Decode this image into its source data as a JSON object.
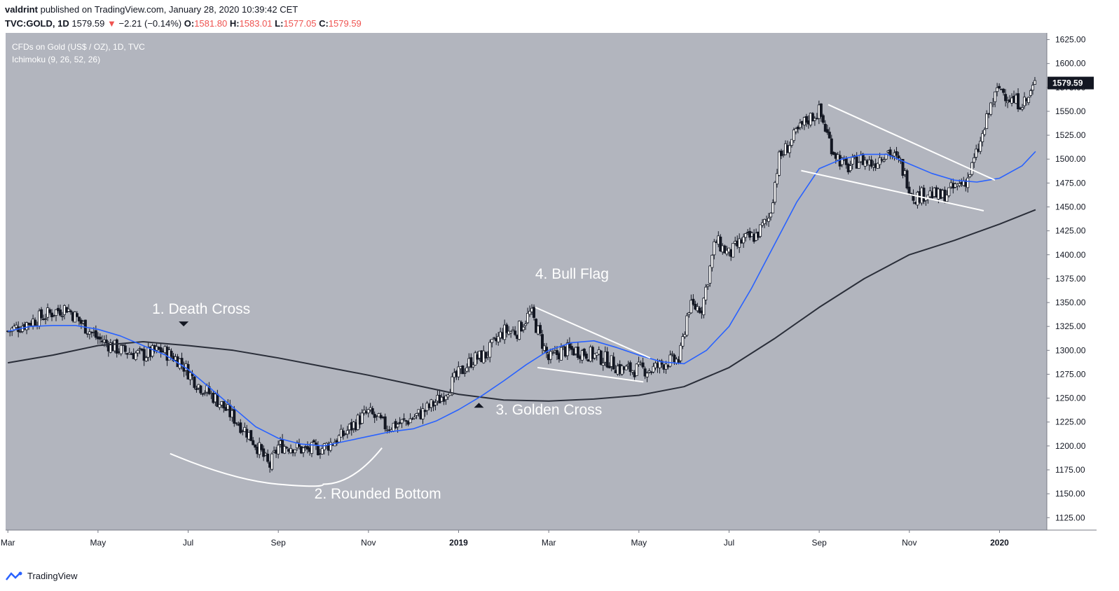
{
  "header": {
    "author": "valdrint",
    "published_text": "published on TradingView.com, January 28, 2020 10:39:42 CET",
    "symbol": "TVC:GOLD, 1D",
    "last": "1579.59",
    "arrow": "▼",
    "change": "−2.21 (−0.14%)",
    "o_label": "O:",
    "o_value": "1581.80",
    "h_label": "H:",
    "h_value": "1583.01",
    "l_label": "L:",
    "l_value": "1577.05",
    "c_label": "C:",
    "c_value": "1579.59"
  },
  "legend": {
    "title": "CFDs on Gold (US$ / OZ), 1D, TVC",
    "indicator": "Ichimoku (9, 26, 52, 26)"
  },
  "footer": {
    "brand": "TradingView"
  },
  "colors": {
    "background": "#b2b5be",
    "candle": "#131722",
    "ma_fast": "#2962ff",
    "ma_slow": "#2a2e39",
    "annotation": "#ffffff"
  },
  "chart_data": {
    "type": "line",
    "title": "CFDs on Gold (US$ / OZ), 1D, TVC",
    "current_price": 1579.59,
    "current_price_label": "1579.59",
    "ylim": [
      1112,
      1632
    ],
    "y_ticks": [
      1125,
      1150,
      1175,
      1200,
      1225,
      1250,
      1275,
      1300,
      1325,
      1350,
      1375,
      1400,
      1425,
      1450,
      1475,
      1500,
      1525,
      1550,
      1575,
      1600,
      1625
    ],
    "y_tick_labels": [
      "1125.00",
      "1150.00",
      "1175.00",
      "1200.00",
      "1225.00",
      "1250.00",
      "1275.00",
      "1300.00",
      "1325.00",
      "1350.00",
      "1375.00",
      "1400.00",
      "1425.00",
      "1450.00",
      "1475.00",
      "1500.00",
      "1525.00",
      "1550.00",
      "1575.00",
      "1600.00",
      "1625.00"
    ],
    "x_axis": {
      "unit": "months since Jan 2018",
      "xlim": [
        1.95,
        25.05
      ],
      "ticks": [
        {
          "pos": 2,
          "label": "Mar",
          "bold": false
        },
        {
          "pos": 4,
          "label": "May",
          "bold": false
        },
        {
          "pos": 6,
          "label": "Jul",
          "bold": false
        },
        {
          "pos": 8,
          "label": "Sep",
          "bold": false
        },
        {
          "pos": 10,
          "label": "Nov",
          "bold": false
        },
        {
          "pos": 12,
          "label": "2019",
          "bold": true
        },
        {
          "pos": 14,
          "label": "Mar",
          "bold": false
        },
        {
          "pos": 16,
          "label": "May",
          "bold": false
        },
        {
          "pos": 18,
          "label": "Jul",
          "bold": false
        },
        {
          "pos": 20,
          "label": "Sep",
          "bold": false
        },
        {
          "pos": 22,
          "label": "Nov",
          "bold": false
        },
        {
          "pos": 24,
          "label": "2020",
          "bold": true
        }
      ]
    },
    "series": [
      {
        "name": "Price (close)",
        "x": [
          2,
          2.5,
          3,
          3.3,
          3.6,
          4,
          4.5,
          5,
          5.4,
          5.8,
          6.2,
          6.6,
          7,
          7.3,
          7.6,
          7.8,
          8,
          8.3,
          8.6,
          9,
          9.4,
          9.8,
          10,
          10.4,
          10.8,
          11.2,
          11.6,
          12,
          12.3,
          12.6,
          13,
          13.3,
          13.6,
          13.8,
          14,
          14.3,
          14.6,
          15,
          15.3,
          15.6,
          16,
          16.3,
          16.6,
          16.9,
          17.1,
          17.4,
          17.7,
          18,
          18.3,
          18.6,
          18.9,
          19.1,
          19.4,
          19.7,
          20,
          20.3,
          20.6,
          20.9,
          21.2,
          21.5,
          21.8,
          22.1,
          22.4,
          22.7,
          23,
          23.3,
          23.6,
          23.8,
          24,
          24.3,
          24.6,
          24.8
        ],
        "values": [
          1320,
          1330,
          1340,
          1345,
          1330,
          1312,
          1300,
          1295,
          1300,
          1290,
          1265,
          1250,
          1230,
          1215,
          1195,
          1178,
          1200,
          1200,
          1195,
          1198,
          1210,
          1228,
          1235,
          1220,
          1225,
          1235,
          1250,
          1275,
          1290,
          1295,
          1320,
          1320,
          1340,
          1315,
          1290,
          1300,
          1300,
          1295,
          1290,
          1280,
          1280,
          1280,
          1288,
          1290,
          1345,
          1345,
          1415,
          1400,
          1415,
          1420,
          1440,
          1500,
          1520,
          1540,
          1550,
          1510,
          1490,
          1500,
          1495,
          1510,
          1495,
          1460,
          1465,
          1460,
          1470,
          1480,
          1520,
          1555,
          1575,
          1560,
          1560,
          1580
        ]
      },
      {
        "name": "MA fast (blue)",
        "x": [
          2,
          2.5,
          3,
          3.5,
          4,
          4.5,
          5,
          5.5,
          6,
          6.5,
          7,
          7.5,
          8,
          8.5,
          9,
          9.5,
          10,
          10.5,
          11,
          11.5,
          12,
          12.5,
          13,
          13.5,
          14,
          14.5,
          15,
          15.5,
          16,
          16.5,
          17,
          17.5,
          18,
          18.5,
          19,
          19.5,
          20,
          20.5,
          21,
          21.5,
          22,
          22.5,
          23,
          23.5,
          24,
          24.5,
          24.8
        ],
        "values": [
          1320,
          1325,
          1326,
          1326,
          1322,
          1315,
          1305,
          1295,
          1280,
          1260,
          1240,
          1220,
          1208,
          1202,
          1200,
          1205,
          1210,
          1215,
          1218,
          1226,
          1238,
          1252,
          1268,
          1285,
          1300,
          1308,
          1310,
          1303,
          1295,
          1288,
          1286,
          1300,
          1325,
          1365,
          1410,
          1455,
          1490,
          1500,
          1505,
          1505,
          1495,
          1485,
          1478,
          1476,
          1480,
          1493,
          1508
        ]
      },
      {
        "name": "MA slow (dark)",
        "x": [
          2,
          3,
          4,
          5,
          6,
          7,
          8,
          9,
          10,
          11,
          12,
          13,
          14,
          15,
          16,
          17,
          18,
          19,
          20,
          21,
          22,
          23,
          24,
          24.8
        ],
        "values": [
          1287,
          1295,
          1305,
          1309,
          1305,
          1300,
          1292,
          1283,
          1274,
          1264,
          1254,
          1248,
          1247,
          1249,
          1253,
          1262,
          1282,
          1312,
          1345,
          1375,
          1400,
          1415,
          1432,
          1447
        ]
      }
    ],
    "annotations": [
      {
        "label": "1. Death Cross",
        "marker": "down-triangle",
        "x": 5.9,
        "y": 1325
      },
      {
        "label": "2. Rounded Bottom",
        "shape": "arc",
        "x": [
          5.6,
          7,
          8,
          9,
          10.3
        ],
        "y": [
          1192,
          1170,
          1160,
          1160,
          1198
        ]
      },
      {
        "label": "3. Golden Cross",
        "marker": "up-triangle",
        "x": 12.45,
        "y": 1240
      },
      {
        "label": "4. Bull Flag",
        "shape": "flag",
        "x": [
          13.7,
          16.25,
          13.75,
          16.1
        ],
        "y": [
          1345,
          1292,
          1282,
          1267
        ]
      },
      {
        "label": "",
        "shape": "flag",
        "x": [
          20.2,
          23.9,
          19.6,
          23.65
        ],
        "y": [
          1557,
          1478,
          1488,
          1446
        ]
      }
    ],
    "grid": false,
    "legend": "top-left"
  }
}
